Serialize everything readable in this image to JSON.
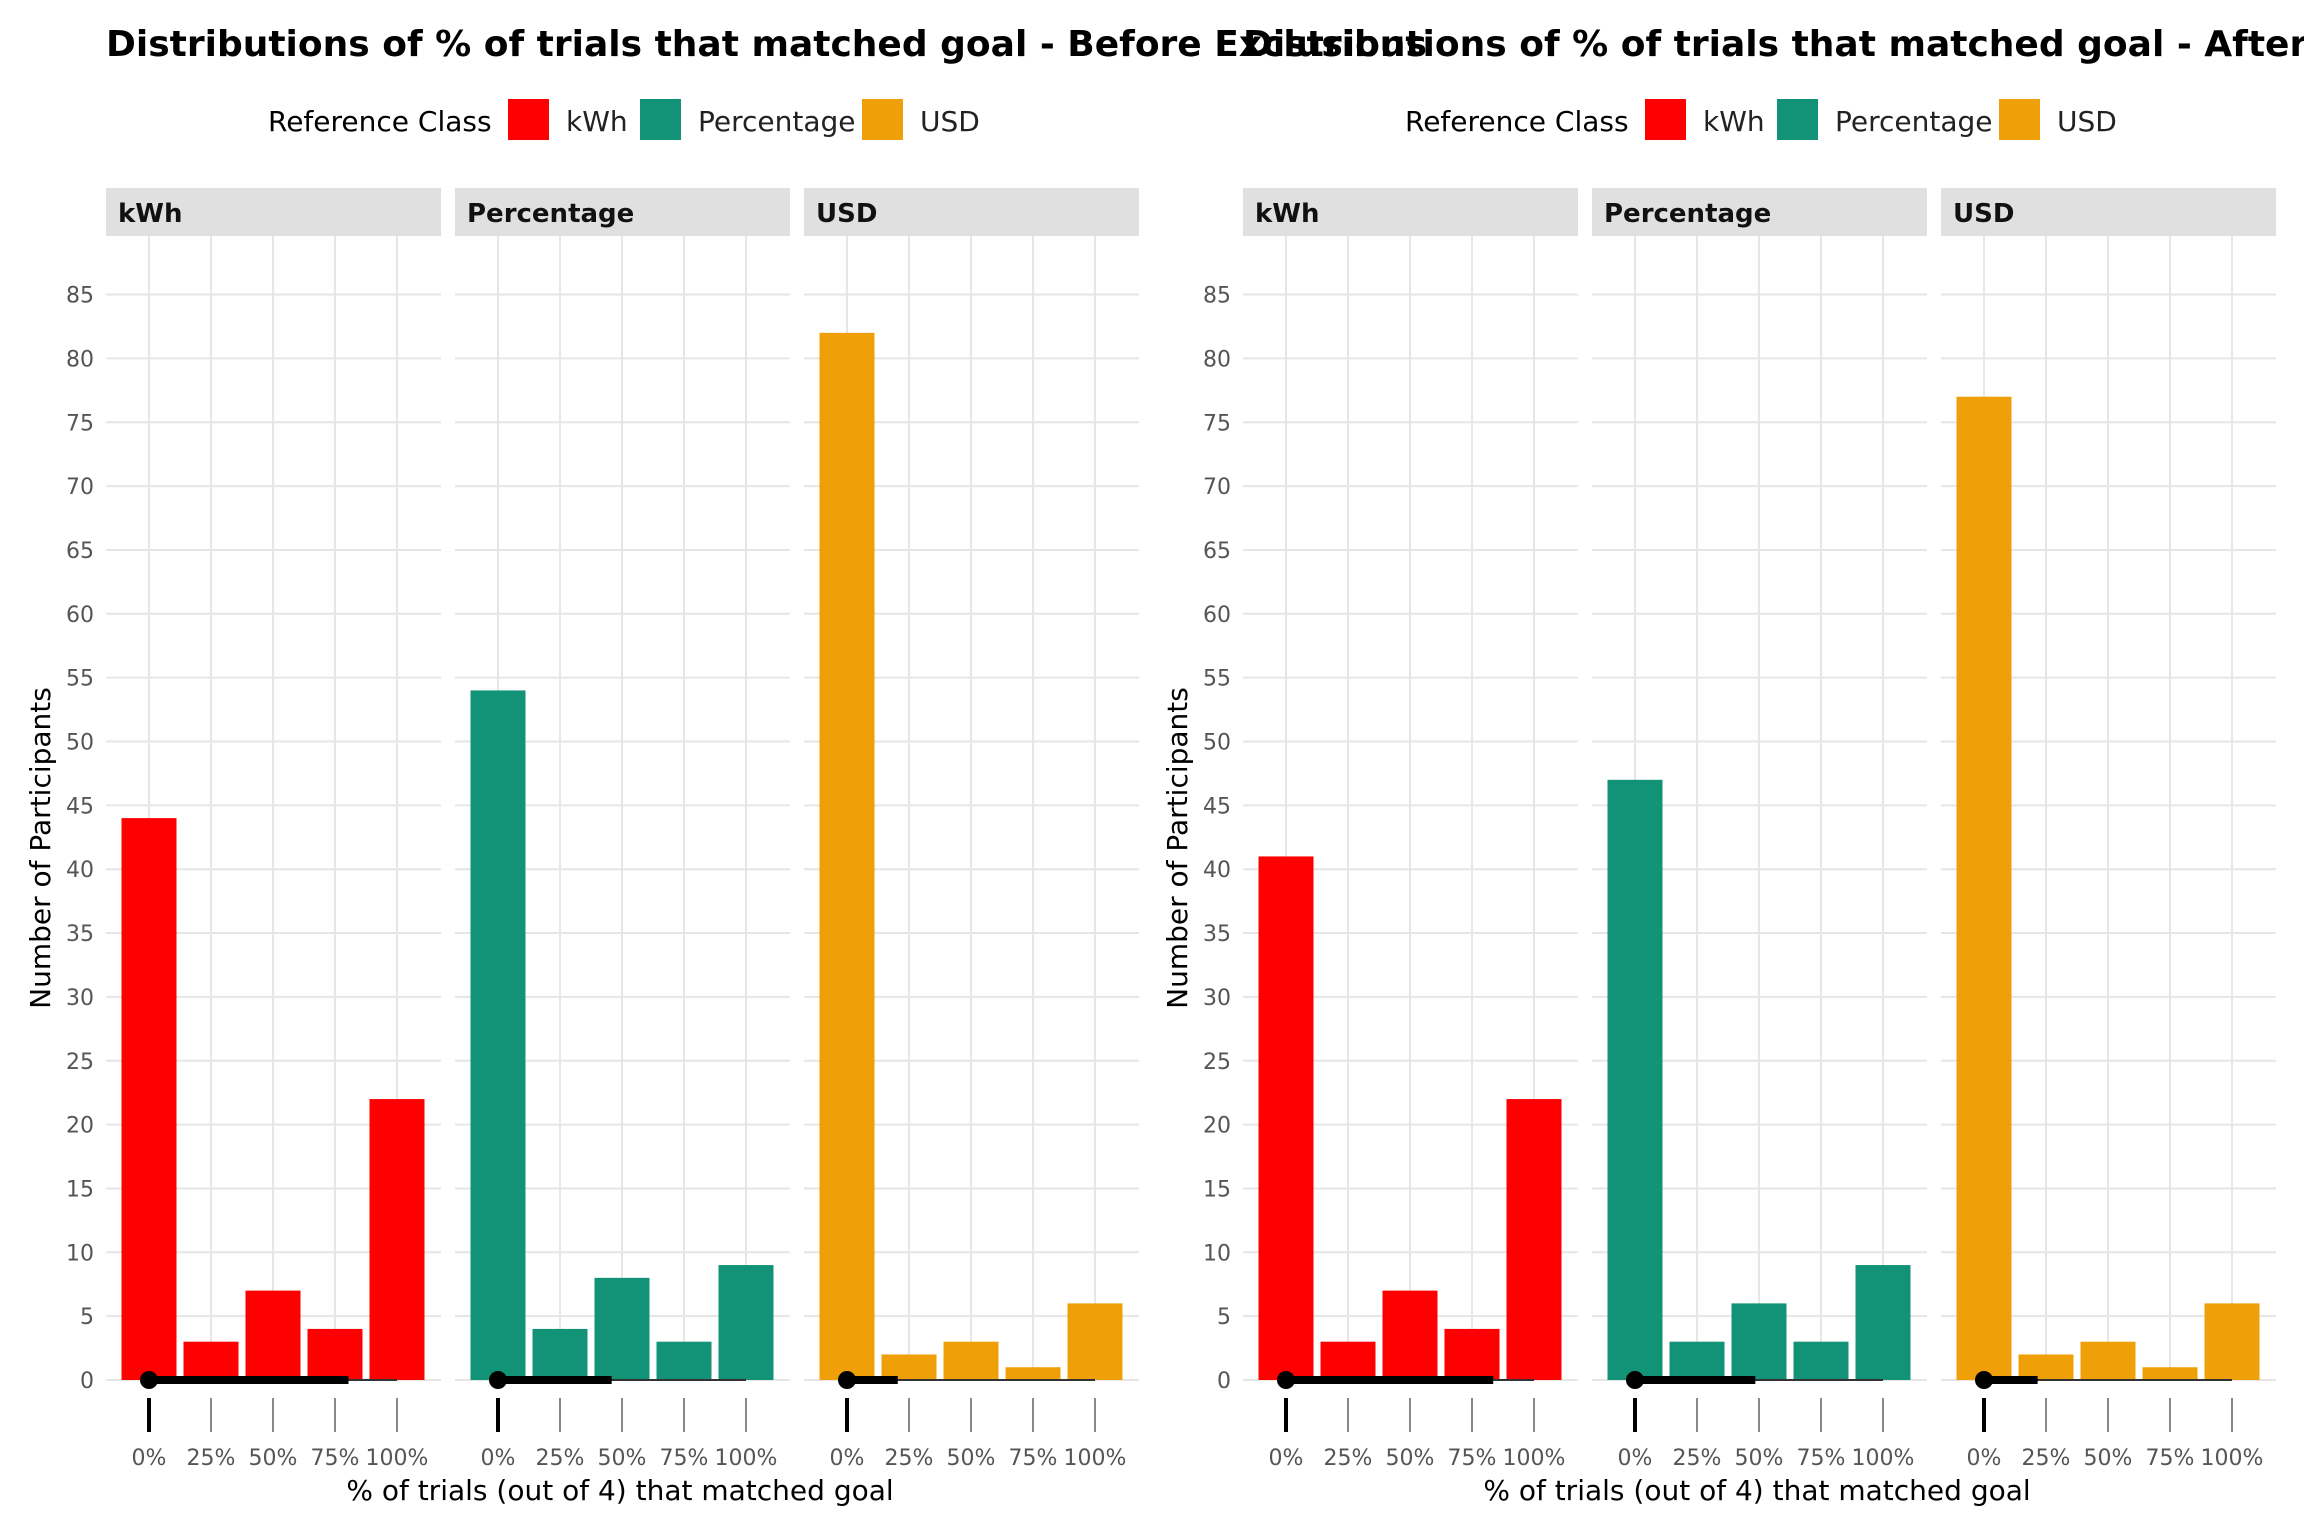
{
  "chart_data": [
    {
      "type": "bar",
      "title": "Distributions of % of trials that matched goal - Before Exclusions",
      "xlabel": "% of trials (out of 4) that matched goal",
      "ylabel": "Number of Participants",
      "legend": {
        "title": "Reference Class",
        "position": "top",
        "items": [
          {
            "label": "kWh",
            "color": "#FF0000"
          },
          {
            "label": "Percentage",
            "color": "#129377"
          },
          {
            "label": "USD",
            "color": "#EFA009"
          }
        ]
      },
      "categories": [
        "0%",
        "25%",
        "50%",
        "75%",
        "100%"
      ],
      "ylim": [
        0,
        88
      ],
      "yticks": [
        0,
        5,
        10,
        15,
        20,
        25,
        30,
        35,
        40,
        45,
        50,
        55,
        60,
        65,
        70,
        75,
        80,
        85
      ],
      "grid": true,
      "panels": [
        {
          "facet": "kWh",
          "color": "#FF0000",
          "values": [
            44,
            3,
            7,
            4,
            22
          ]
        },
        {
          "facet": "Percentage",
          "color": "#129377",
          "values": [
            54,
            4,
            8,
            3,
            9
          ]
        },
        {
          "facet": "USD",
          "color": "#EFA009",
          "values": [
            82,
            2,
            3,
            1,
            6
          ]
        }
      ]
    },
    {
      "type": "bar",
      "title": "Distributions of % of trials that matched goal - After Exclusions",
      "xlabel": "% of trials (out of 4) that matched goal",
      "ylabel": "Number of Participants",
      "legend": {
        "title": "Reference Class",
        "position": "top",
        "items": [
          {
            "label": "kWh",
            "color": "#FF0000"
          },
          {
            "label": "Percentage",
            "color": "#129377"
          },
          {
            "label": "USD",
            "color": "#EFA009"
          }
        ]
      },
      "categories": [
        "0%",
        "25%",
        "50%",
        "75%",
        "100%"
      ],
      "ylim": [
        0,
        88
      ],
      "yticks": [
        0,
        5,
        10,
        15,
        20,
        25,
        30,
        35,
        40,
        45,
        50,
        55,
        60,
        65,
        70,
        75,
        80,
        85
      ],
      "grid": true,
      "panels": [
        {
          "facet": "kWh",
          "color": "#FF0000",
          "values": [
            41,
            3,
            7,
            4,
            22
          ]
        },
        {
          "facet": "Percentage",
          "color": "#129377",
          "values": [
            47,
            3,
            6,
            3,
            9
          ]
        },
        {
          "facet": "USD",
          "color": "#EFA009",
          "values": [
            77,
            2,
            3,
            1,
            6
          ]
        }
      ]
    }
  ]
}
